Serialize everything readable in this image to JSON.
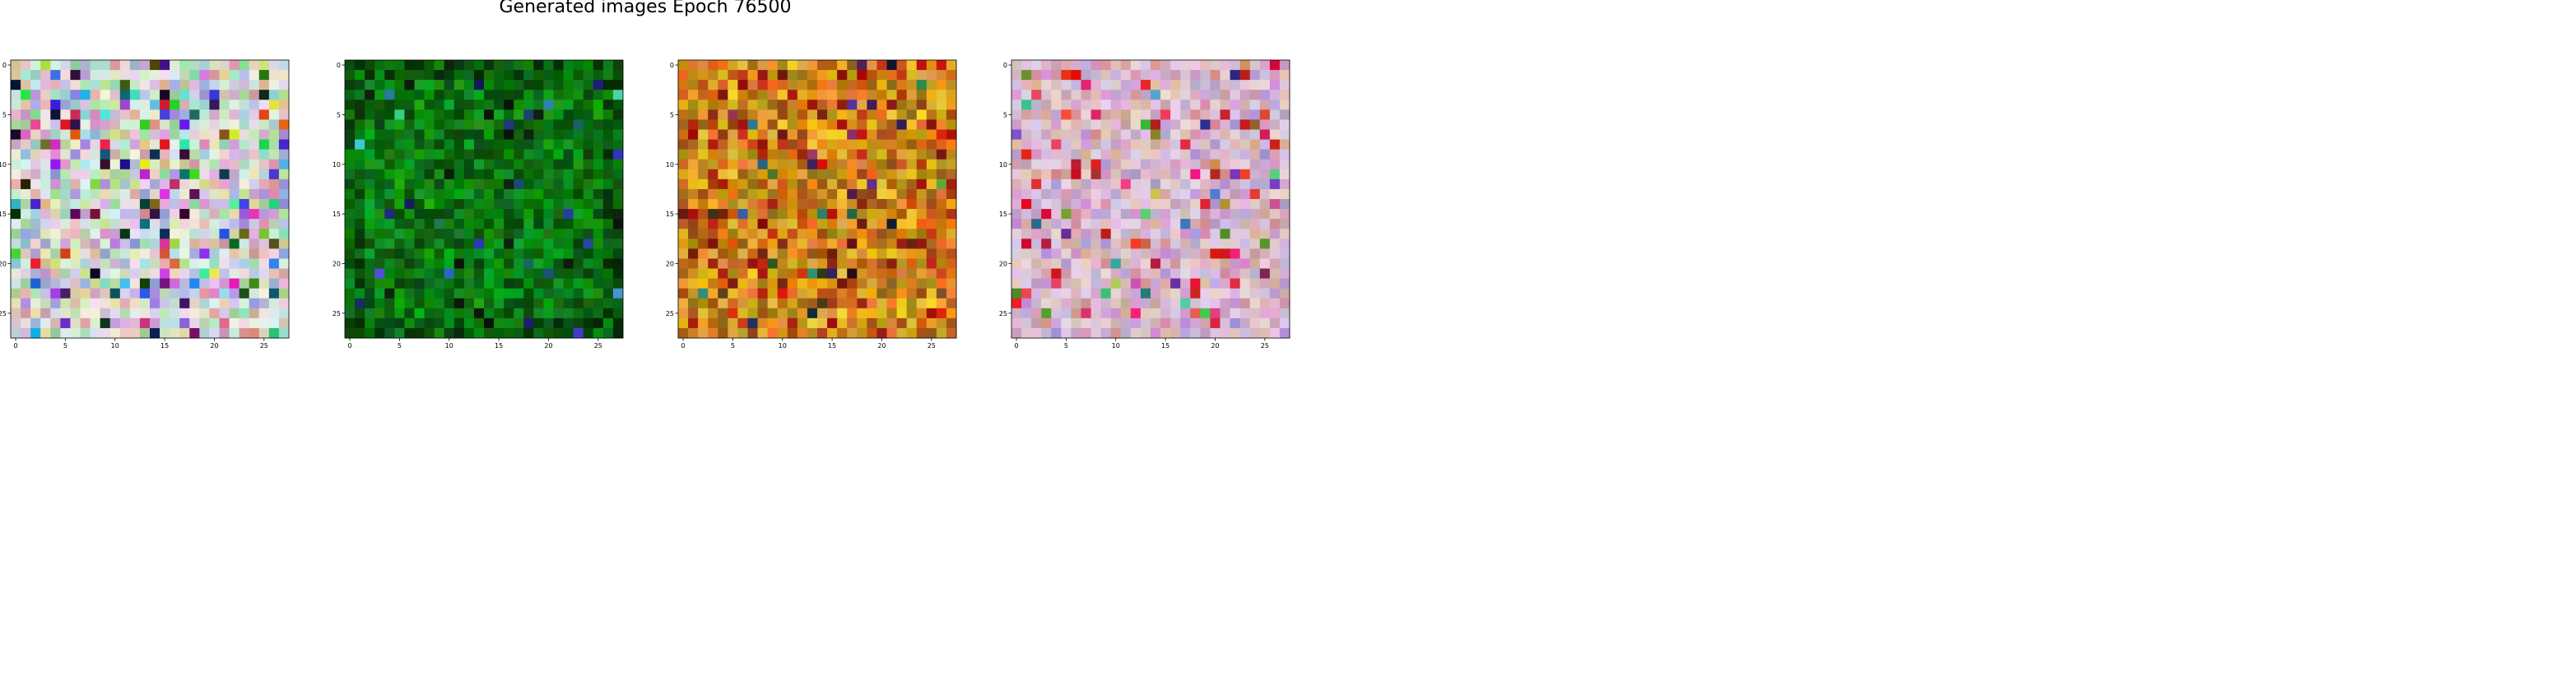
{
  "figure": {
    "title": "Generated images Epoch 76500"
  },
  "chart_data": [
    {
      "type": "heatmap",
      "grid": [
        28,
        28
      ],
      "palette": "pastel-multicolor",
      "xticks": [
        "0",
        "5",
        "10",
        "15",
        "20",
        "25"
      ],
      "yticks": [
        "0",
        "5",
        "10",
        "15",
        "20",
        "25"
      ]
    },
    {
      "type": "heatmap",
      "grid": [
        28,
        28
      ],
      "palette": "green",
      "xticks": [
        "0",
        "5",
        "10",
        "15",
        "20",
        "25"
      ],
      "yticks": [
        "0",
        "5",
        "10",
        "15",
        "20",
        "25"
      ]
    },
    {
      "type": "heatmap",
      "grid": [
        28,
        28
      ],
      "palette": "orange-red",
      "xticks": [
        "0",
        "5",
        "10",
        "15",
        "20",
        "25"
      ],
      "yticks": [
        "0",
        "5",
        "10",
        "15",
        "20",
        "25"
      ]
    },
    {
      "type": "heatmap",
      "grid": [
        28,
        28
      ],
      "palette": "pastel-pink",
      "xticks": [
        "0",
        "5",
        "10",
        "15",
        "20",
        "25"
      ],
      "yticks": [
        "0",
        "5",
        "10",
        "15",
        "20",
        "25"
      ]
    }
  ]
}
